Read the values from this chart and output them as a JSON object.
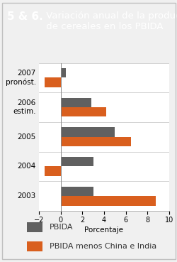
{
  "title_number": "5 & 6.",
  "title_rest": " Variación anual de la producción\n de cereales en los PBIDA",
  "header_bg": "#e8896a",
  "years": [
    "2007\npronóst.",
    "2006\nestim.",
    "2005",
    "2004",
    "2003"
  ],
  "pbida_values": [
    0.5,
    2.8,
    5.0,
    3.0,
    3.0
  ],
  "pbida_minus_values": [
    -1.5,
    4.2,
    6.5,
    -1.5,
    8.8
  ],
  "pbida_color": "#606060",
  "pbida_minus_color": "#d95f1e",
  "xlim": [
    -2,
    10
  ],
  "xticks": [
    -2,
    0,
    2,
    4,
    6,
    8,
    10
  ],
  "xlabel": "Porcentaje",
  "legend_pbida": "PBIDA",
  "legend_pbida_minus": "PBIDA menos China e India",
  "bar_height": 0.32,
  "chart_bg": "#ffffff",
  "outer_bg": "#f0f0f0",
  "border_color": "#c0c0c0",
  "grid_color": "#cccccc",
  "title_fontsize": 9.5,
  "title_number_fontsize": 11
}
